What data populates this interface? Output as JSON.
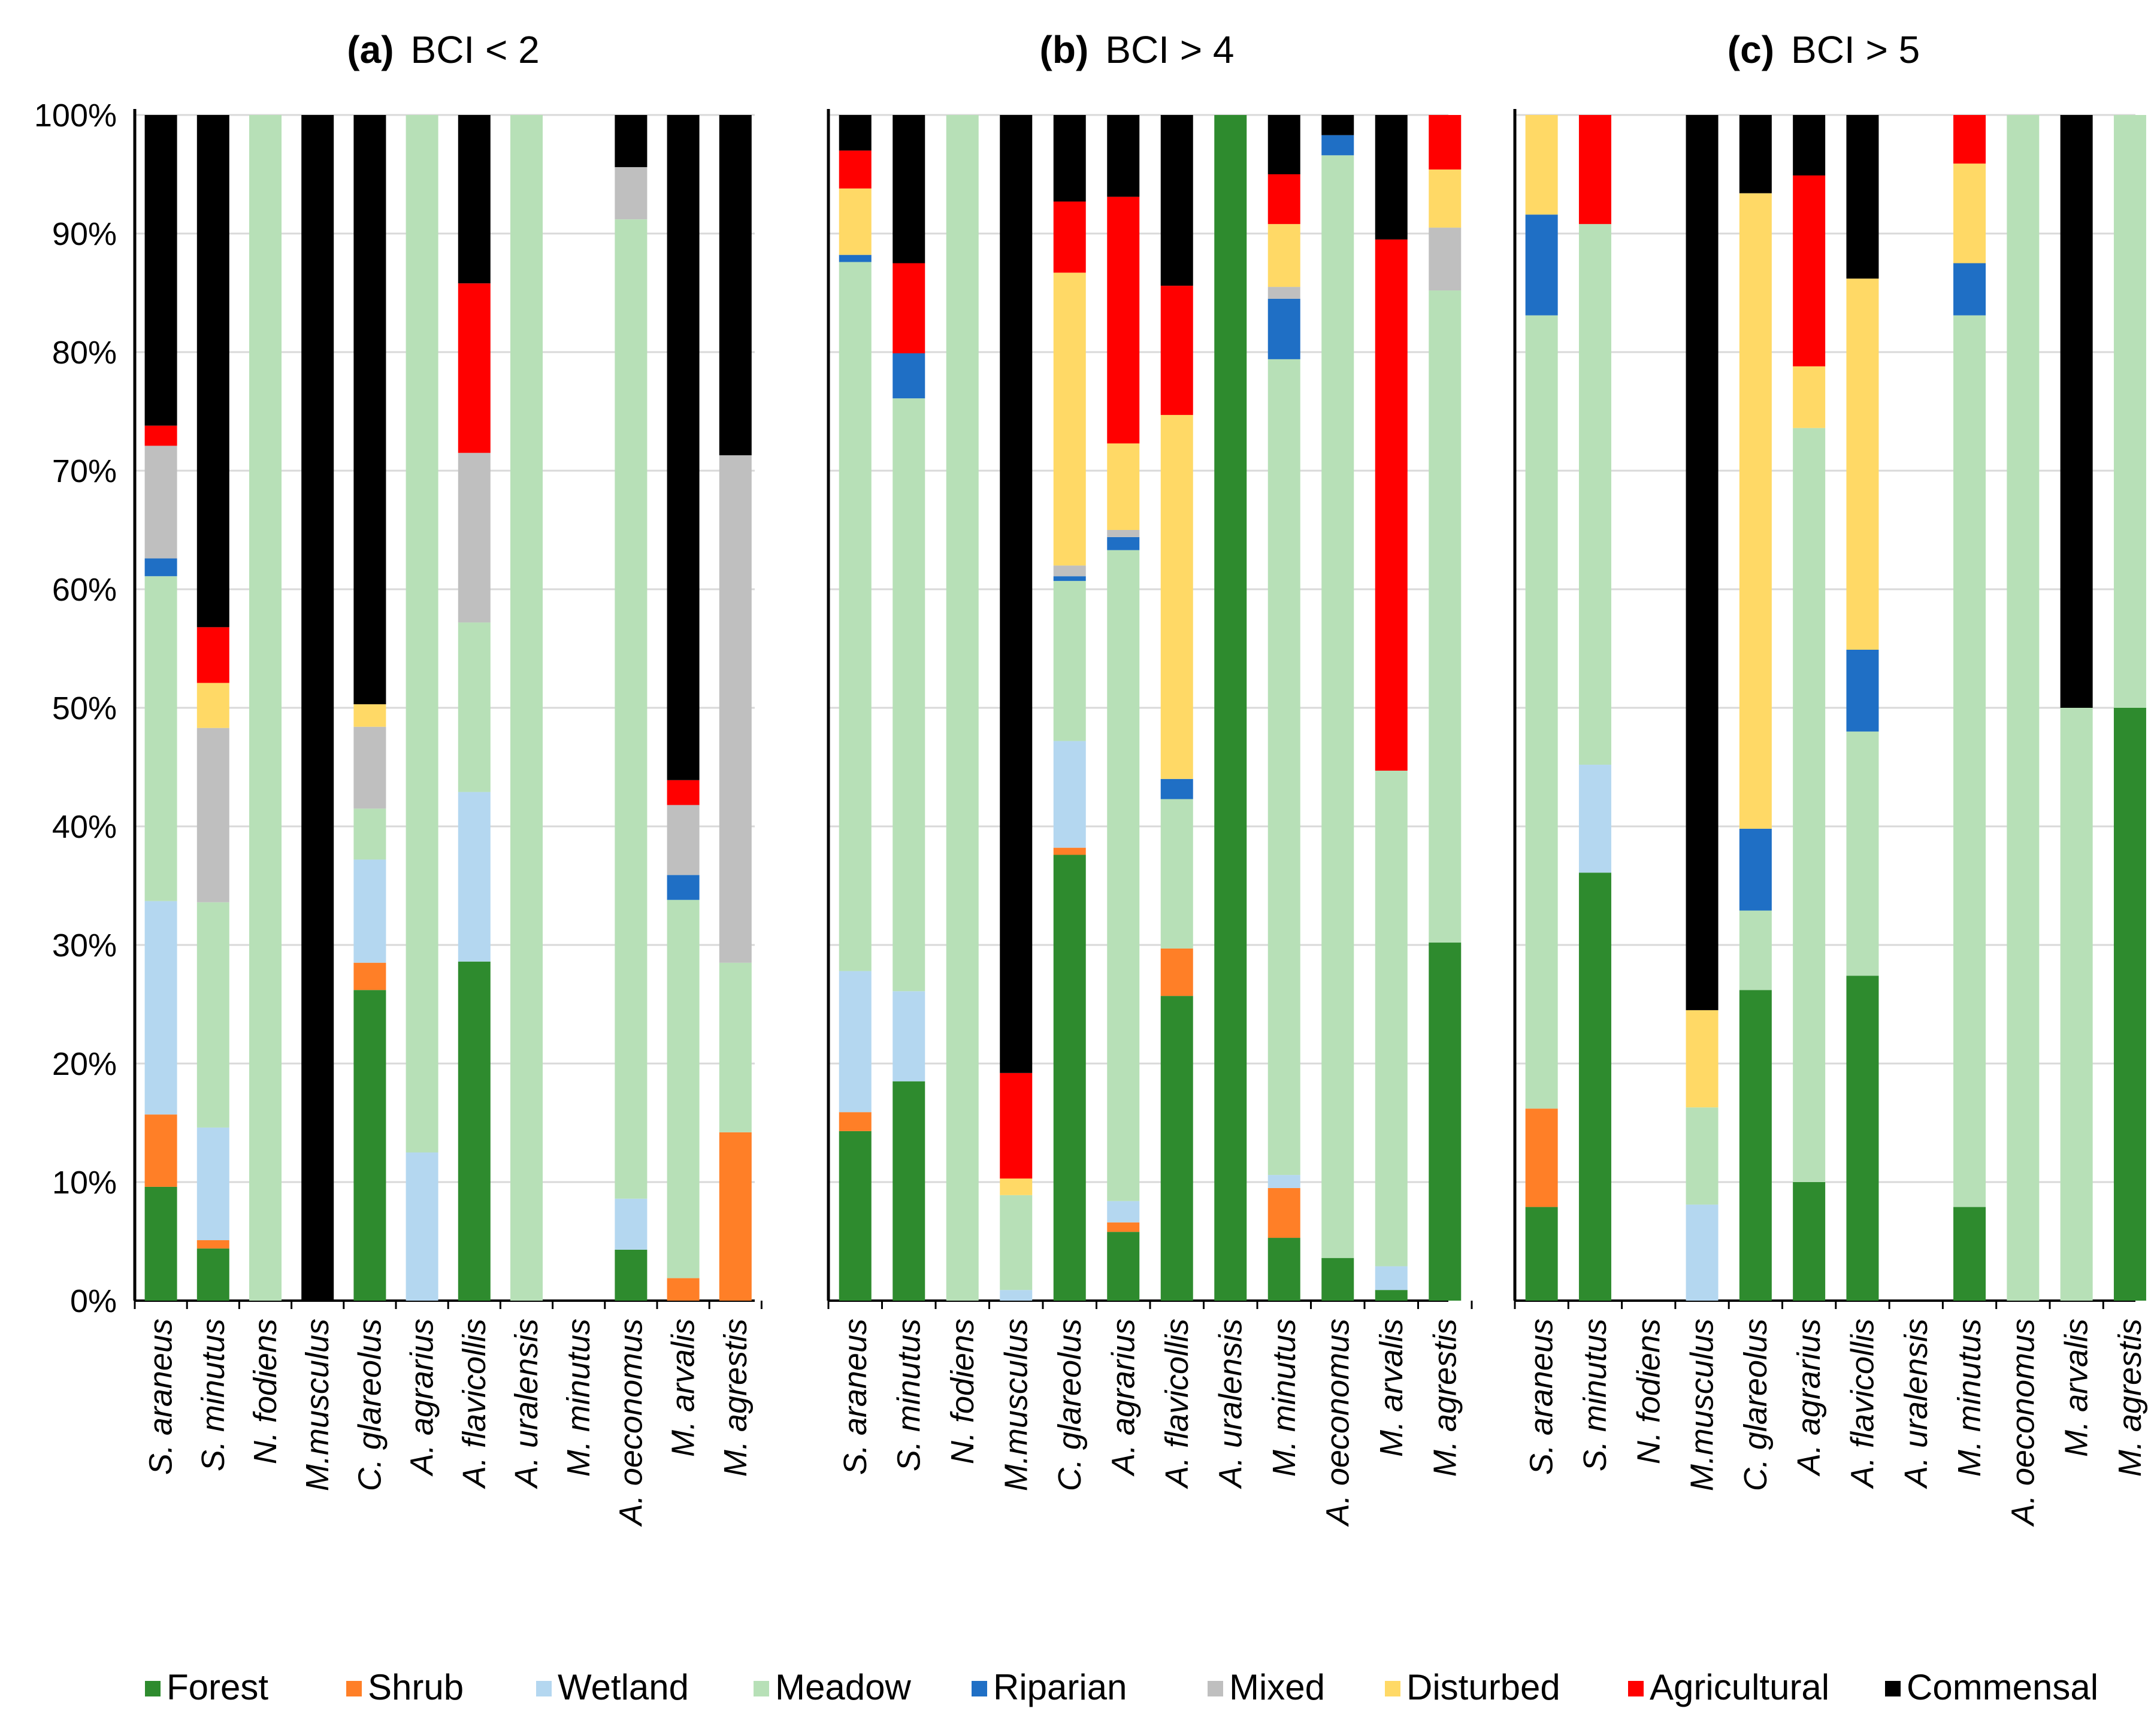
{
  "chart_data": {
    "type": "bar",
    "stacked": true,
    "percent": true,
    "grid": true,
    "legend_position": "bottom",
    "categories": [
      "Forest",
      "Shrub",
      "Wetland",
      "Meadow",
      "Riparian",
      "Mixed",
      "Disturbed",
      "Agricultural",
      "Commensal"
    ],
    "colors": {
      "Forest": "#2e8b2e",
      "Shrub": "#ff7f27",
      "Wetland": "#b4d7f0",
      "Meadow": "#b7e0b7",
      "Riparian": "#1f6fc5",
      "Mixed": "#bfbfbf",
      "Disturbed": "#ffd966",
      "Agricultural": "#ff0000",
      "Commensal": "#000000"
    },
    "y_ticks": [
      "0%",
      "10%",
      "20%",
      "30%",
      "40%",
      "50%",
      "60%",
      "70%",
      "80%",
      "90%",
      "100%"
    ],
    "ylim": [
      0,
      100
    ],
    "species": [
      "S. araneus",
      "S. minutus",
      "N. fodiens",
      "M.musculus",
      "C. glareolus",
      "A. agrarius",
      "A. flavicollis",
      "A. uralensis",
      "M. minutus",
      "A. oeconomus",
      "M. arvalis",
      "M. agrestis"
    ],
    "panels": [
      {
        "label": "(a)",
        "title": "BCI < 2",
        "values": [
          [
            9.6,
            6.1,
            18.0,
            27.4,
            1.5,
            9.5,
            0,
            1.7,
            26.2
          ],
          [
            4.4,
            0.7,
            9.5,
            19.0,
            0,
            14.7,
            3.8,
            4.7,
            43.2
          ],
          [
            0,
            0,
            0,
            100,
            0,
            0,
            0,
            0,
            0
          ],
          [
            0,
            0,
            0,
            0,
            0,
            0,
            0,
            0,
            100
          ],
          [
            26.2,
            2.3,
            8.7,
            4.3,
            0,
            6.9,
            1.9,
            0,
            49.7
          ],
          [
            0,
            0,
            12.5,
            87.5,
            0,
            0,
            0,
            0,
            0
          ],
          [
            28.6,
            0,
            14.3,
            14.3,
            0,
            14.3,
            0,
            14.3,
            14.2
          ],
          [
            0,
            0,
            0,
            100,
            0,
            0,
            0,
            0,
            0
          ],
          [
            0,
            0,
            0,
            0,
            0,
            0,
            0,
            0,
            0
          ],
          [
            4.3,
            0,
            4.3,
            82.6,
            0,
            4.4,
            0,
            0,
            4.4
          ],
          [
            0,
            1.9,
            0,
            31.9,
            2.1,
            5.9,
            0,
            2.1,
            56.1
          ],
          [
            0,
            14.2,
            0,
            14.3,
            0,
            42.8,
            0,
            0,
            28.7
          ]
        ]
      },
      {
        "label": "(b)",
        "title": "BCI > 4",
        "values": [
          [
            14.3,
            1.6,
            11.9,
            59.8,
            0.6,
            0,
            5.6,
            3.2,
            3.0
          ],
          [
            18.5,
            0,
            7.6,
            50.0,
            3.8,
            0,
            0,
            7.6,
            12.5
          ],
          [
            0,
            0,
            0,
            100,
            0,
            0,
            0,
            0,
            0
          ],
          [
            0,
            0,
            0.9,
            8.0,
            0,
            0,
            1.4,
            8.9,
            80.8
          ],
          [
            37.6,
            0.6,
            9.0,
            13.5,
            0.4,
            0.9,
            24.7,
            6.0,
            7.3
          ],
          [
            5.8,
            0.8,
            1.8,
            54.9,
            1.1,
            0.6,
            7.3,
            20.8,
            6.9
          ],
          [
            25.7,
            4.0,
            0,
            12.6,
            1.7,
            0,
            30.7,
            10.9,
            14.4
          ],
          [
            100,
            0,
            0,
            0,
            0,
            0,
            0,
            0,
            0
          ],
          [
            5.3,
            4.2,
            1.1,
            68.8,
            5.1,
            1.0,
            5.3,
            4.2,
            5.0
          ],
          [
            3.6,
            0,
            0,
            93.0,
            1.7,
            0,
            0,
            0,
            1.7
          ],
          [
            0.9,
            0,
            2.0,
            41.8,
            0,
            0,
            0,
            44.8,
            10.5
          ],
          [
            30.2,
            0,
            0,
            55.0,
            0,
            5.3,
            4.9,
            4.6,
            0
          ]
        ]
      },
      {
        "label": "(c)",
        "title": "BCI > 5",
        "values": [
          [
            7.9,
            8.3,
            0,
            66.9,
            8.5,
            0,
            8.4,
            0,
            0
          ],
          [
            36.1,
            0,
            9.1,
            45.6,
            0,
            0,
            0,
            9.2,
            0
          ],
          [
            0,
            0,
            0,
            0,
            0,
            0,
            0,
            0,
            0
          ],
          [
            0,
            0,
            8.1,
            8.2,
            0,
            0,
            8.2,
            0,
            75.5
          ],
          [
            26.2,
            0,
            0,
            6.7,
            6.9,
            0,
            53.6,
            0,
            6.6
          ],
          [
            10.0,
            0,
            0,
            63.6,
            0,
            0,
            5.2,
            16.1,
            5.1
          ],
          [
            27.4,
            0,
            0,
            20.6,
            6.9,
            0,
            31.3,
            0,
            13.8
          ],
          [
            0,
            0,
            0,
            0,
            0,
            0,
            0,
            0,
            0
          ],
          [
            7.9,
            0,
            0,
            75.2,
            4.4,
            0,
            8.4,
            4.1,
            0
          ],
          [
            0,
            0,
            0,
            100,
            0,
            0,
            0,
            0,
            0
          ],
          [
            0,
            0,
            0,
            50.0,
            0,
            0,
            0,
            0,
            50.0
          ],
          [
            50.0,
            0,
            0,
            50.0,
            0,
            0,
            0,
            0,
            0
          ]
        ]
      }
    ]
  }
}
